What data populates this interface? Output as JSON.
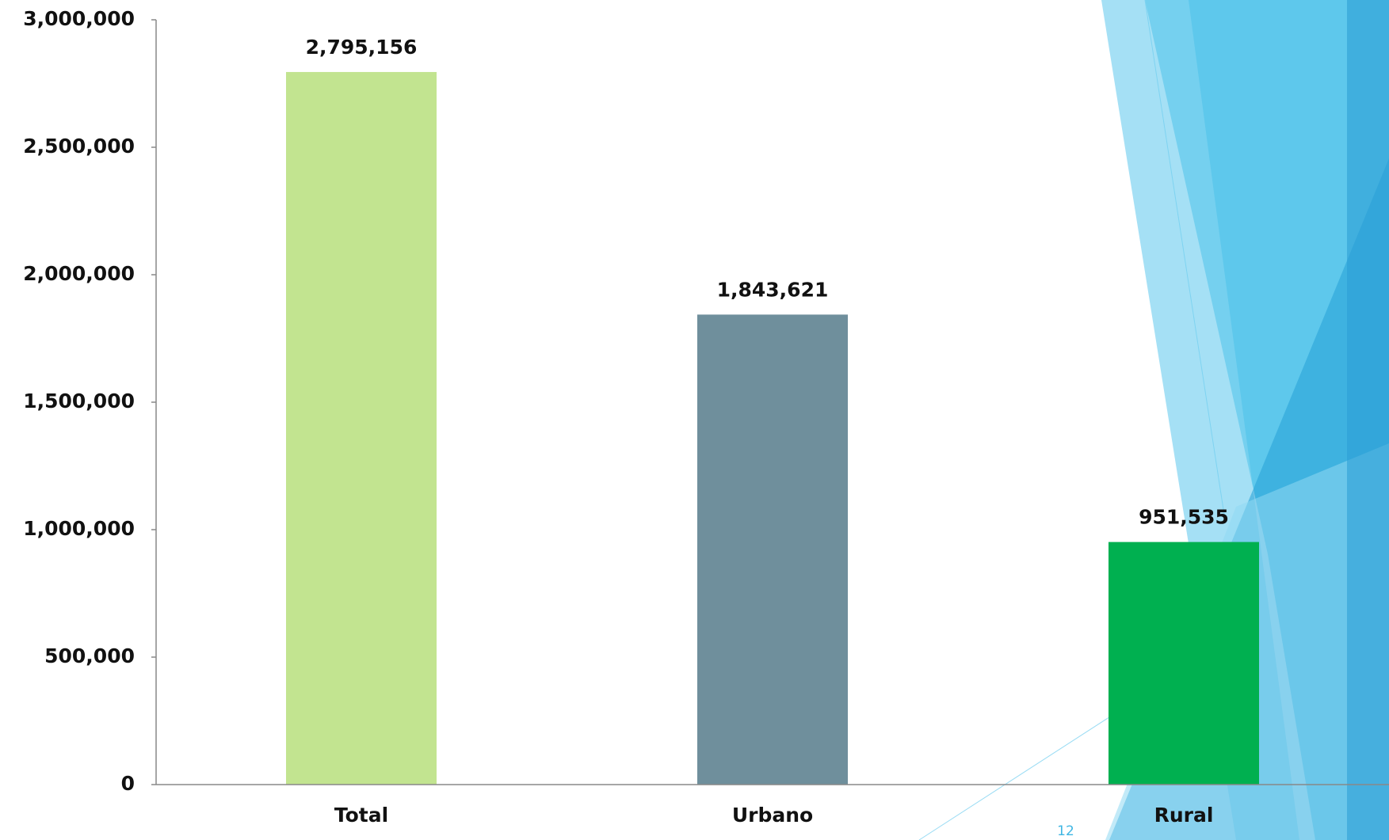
{
  "chart_data": {
    "type": "bar",
    "categories": [
      "Total",
      "Urbano",
      "Rural"
    ],
    "values": [
      2795156,
      1843621,
      951535
    ],
    "value_labels": [
      "2,795,156",
      "1,843,621",
      "951,535"
    ],
    "colors": [
      "#c2e490",
      "#6f8f9c",
      "#00b050"
    ],
    "ylim": [
      0,
      3000000
    ],
    "yticks": [
      0,
      {
        "value": 500000,
        "label": "500,000"
      },
      {
        "value": 1000000,
        "label": "1,000,000"
      },
      {
        "value": 1500000,
        "label": "1,500,000"
      },
      {
        "value": 2000000,
        "label": "2,000,000"
      },
      {
        "value": 2500000,
        "label": "2,500,000"
      },
      {
        "value": 3000000,
        "label": "3,000,000"
      }
    ],
    "grid": false
  },
  "page_number": "12"
}
